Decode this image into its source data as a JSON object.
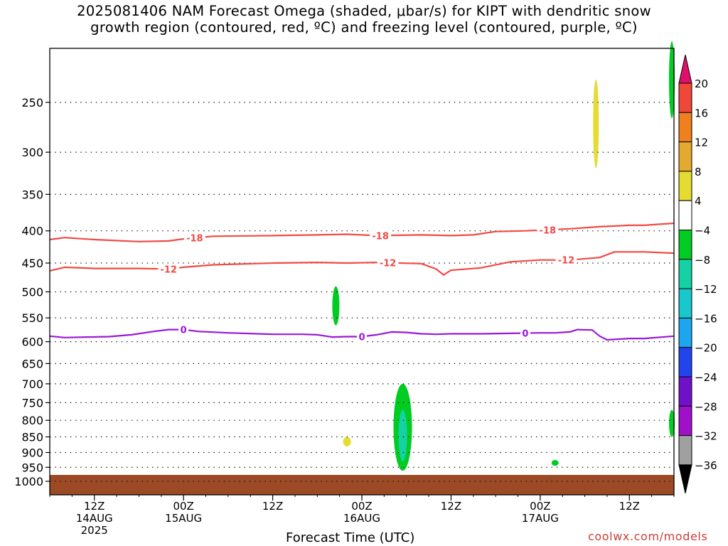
{
  "title_lines": [
    "2025081406 NAM Forecast Omega (shaded, μbar/s) for KIPT with dendritic snow",
    "growth region (contoured, red, ºC) and freezing level (contoured, purple, ºC)"
  ],
  "xaxis_title": "Forecast Time (UTC)",
  "credit": "coolwx.com/models",
  "colors": {
    "dgz_contour": "#f04a44",
    "freezing_contour": "#9a18d6",
    "ground": "#9c4a26",
    "omega_green": "#00cc22",
    "omega_teal": "#14d2a4",
    "omega_yellow": "#e4dc30",
    "colorbar_top_arrow": "#e0106a"
  },
  "chart_data": {
    "type": "time-height",
    "title": "2025081406 NAM Forecast Omega (shaded, μbar/s) for KIPT with dendritic snow growth region (contoured, red, ºC) and freezing level (contoured, purple, ºC)",
    "xlabel": "Forecast Time (UTC)",
    "ylabel": "",
    "y_scale": "log-pressure, inverted",
    "y_ticks": [
      250,
      300,
      350,
      400,
      450,
      500,
      550,
      600,
      650,
      700,
      750,
      800,
      850,
      900,
      950,
      1000
    ],
    "x_ticks": [
      {
        "hour": 6,
        "label": "12Z",
        "sub": [
          "14AUG",
          "2025"
        ]
      },
      {
        "hour": 18,
        "label": "00Z",
        "sub": [
          "15AUG"
        ]
      },
      {
        "hour": 30,
        "label": "12Z",
        "sub": []
      },
      {
        "hour": 42,
        "label": "00Z",
        "sub": [
          "16AUG"
        ]
      },
      {
        "hour": 54,
        "label": "12Z",
        "sub": []
      },
      {
        "hour": 66,
        "label": "00Z",
        "sub": [
          "17AUG"
        ]
      },
      {
        "hour": 78,
        "label": "12Z",
        "sub": []
      }
    ],
    "grid": true,
    "contours": [
      {
        "name": "-18",
        "color": "#f04a44",
        "labels_at": [
          19.5,
          44.5,
          67
        ],
        "points": [
          [
            0,
            413
          ],
          [
            2,
            410
          ],
          [
            6,
            413
          ],
          [
            12,
            416
          ],
          [
            16,
            415
          ],
          [
            18,
            412
          ],
          [
            22,
            408
          ],
          [
            30,
            407
          ],
          [
            36,
            406
          ],
          [
            40,
            405
          ],
          [
            44,
            407
          ],
          [
            50,
            406
          ],
          [
            54,
            407
          ],
          [
            57,
            406
          ],
          [
            60,
            401
          ],
          [
            64,
            400
          ],
          [
            66,
            399
          ],
          [
            70,
            397
          ],
          [
            74,
            394
          ],
          [
            78,
            392
          ],
          [
            80,
            392
          ],
          [
            84,
            389
          ]
        ]
      },
      {
        "name": "-12",
        "color": "#f04a44",
        "labels_at": [
          16,
          45.5,
          69.5
        ],
        "points": [
          [
            0,
            463
          ],
          [
            2,
            457
          ],
          [
            6,
            459
          ],
          [
            12,
            459
          ],
          [
            16,
            460
          ],
          [
            18,
            457
          ],
          [
            22,
            453
          ],
          [
            30,
            450
          ],
          [
            36,
            449
          ],
          [
            40,
            450
          ],
          [
            44,
            449
          ],
          [
            50,
            451
          ],
          [
            52,
            460
          ],
          [
            53,
            470
          ],
          [
            54,
            462
          ],
          [
            58,
            458
          ],
          [
            62,
            448
          ],
          [
            66,
            445
          ],
          [
            70,
            445
          ],
          [
            74,
            441
          ],
          [
            76,
            432
          ],
          [
            80,
            432
          ],
          [
            84,
            434
          ]
        ]
      },
      {
        "name": "0",
        "color": "#9a18d6",
        "labels_at": [
          18,
          42,
          64
        ],
        "points": [
          [
            0,
            588
          ],
          [
            2,
            591
          ],
          [
            8,
            589
          ],
          [
            11,
            585
          ],
          [
            14,
            578
          ],
          [
            16,
            574
          ],
          [
            18,
            574
          ],
          [
            20,
            578
          ],
          [
            24,
            581
          ],
          [
            30,
            584
          ],
          [
            34,
            584
          ],
          [
            36,
            585
          ],
          [
            38,
            590
          ],
          [
            40,
            589
          ],
          [
            42,
            589
          ],
          [
            44,
            585
          ],
          [
            46,
            579
          ],
          [
            48,
            580
          ],
          [
            50,
            583
          ],
          [
            52,
            584
          ],
          [
            54,
            583
          ],
          [
            58,
            583
          ],
          [
            62,
            582
          ],
          [
            66,
            581
          ],
          [
            68,
            581
          ],
          [
            70,
            579
          ],
          [
            71,
            574
          ],
          [
            73,
            575
          ],
          [
            74,
            588
          ],
          [
            75,
            596
          ],
          [
            78,
            593
          ],
          [
            80,
            593
          ],
          [
            84,
            588
          ]
        ]
      }
    ],
    "shaded_regions": [
      {
        "color": "#e4dc30",
        "hour": 73.5,
        "p_top": 230,
        "p_bottom": 318
      },
      {
        "color": "#00cc22",
        "hour": 84,
        "p_top": 200,
        "p_bottom": 265
      },
      {
        "color": "#00cc22",
        "hour": 38.5,
        "p_top": 490,
        "p_bottom": 565
      },
      {
        "color": "#00cc22",
        "hour": 47.5,
        "p_top": 700,
        "p_bottom": 962
      },
      {
        "color": "#14d2a4",
        "hour": 47.5,
        "p_top": 770,
        "p_bottom": 930
      },
      {
        "color": "#e4dc30",
        "hour": 40,
        "p_top": 850,
        "p_bottom": 880
      },
      {
        "color": "#00cc22",
        "hour": 68,
        "p_top": 925,
        "p_bottom": 945
      },
      {
        "color": "#00cc22",
        "hour": 84,
        "p_top": 770,
        "p_bottom": 850
      }
    ],
    "colorbar": {
      "ticks": [
        "20",
        "16",
        "12",
        "8",
        "4",
        "−4",
        "−8",
        "−12",
        "−16",
        "−20",
        "−24",
        "−28",
        "−32",
        "−36"
      ],
      "colors": [
        "#e0106a",
        "#f04838",
        "#f0801e",
        "#e4aa30",
        "#e4dc30",
        "#ffffff",
        "#00cc22",
        "#14d2a4",
        "#18c8cc",
        "#1ca6f0",
        "#2244ee",
        "#7010c8",
        "#a010c8",
        "#a0a0a0",
        "#000000"
      ]
    }
  }
}
